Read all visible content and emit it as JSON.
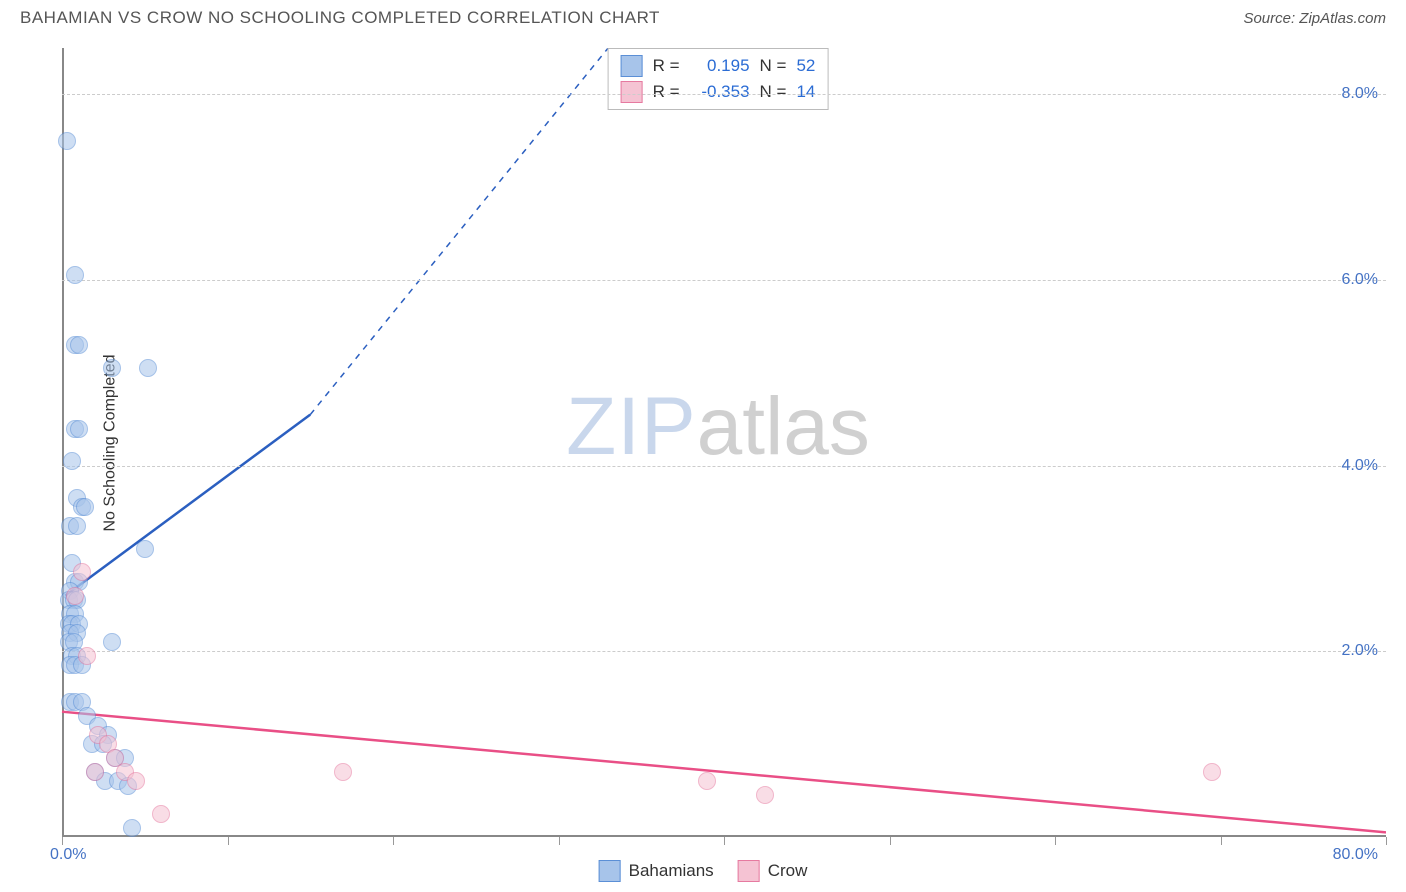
{
  "title": "BAHAMIAN VS CROW NO SCHOOLING COMPLETED CORRELATION CHART",
  "source_label": "Source: ZipAtlas.com",
  "chart": {
    "type": "scatter",
    "y_axis_label": "No Schooling Completed",
    "xlim": [
      0,
      80
    ],
    "ylim": [
      0,
      8.5
    ],
    "x_ticks": [
      0,
      10,
      20,
      30,
      40,
      50,
      60,
      70,
      80
    ],
    "x_tick_labels": {
      "0": "0.0%",
      "80": "80.0%"
    },
    "y_ticks": [
      2,
      4,
      6,
      8
    ],
    "y_tick_labels": [
      "2.0%",
      "4.0%",
      "6.0%",
      "8.0%"
    ],
    "background_color": "#ffffff",
    "grid_color": "#cccccc",
    "axis_color": "#888888",
    "marker_radius": 9,
    "marker_opacity": 0.55,
    "series": [
      {
        "name": "Bahamians",
        "fill_color": "#a7c4ea",
        "stroke_color": "#5b8fd6",
        "R": "0.195",
        "N": "52",
        "trend": {
          "x1": 0.2,
          "y1": 2.6,
          "x2": 15,
          "y2": 4.55,
          "dash_x2": 33,
          "dash_y2": 8.5,
          "color": "#2b5fc0",
          "width": 2.5
        },
        "points": [
          [
            0.3,
            7.5
          ],
          [
            0.8,
            6.05
          ],
          [
            0.8,
            5.3
          ],
          [
            1.0,
            5.3
          ],
          [
            3.0,
            5.05
          ],
          [
            5.2,
            5.05
          ],
          [
            0.8,
            4.4
          ],
          [
            1.0,
            4.4
          ],
          [
            0.6,
            4.05
          ],
          [
            0.9,
            3.65
          ],
          [
            1.2,
            3.55
          ],
          [
            1.4,
            3.55
          ],
          [
            0.5,
            3.35
          ],
          [
            0.9,
            3.35
          ],
          [
            5.0,
            3.1
          ],
          [
            0.6,
            2.95
          ],
          [
            0.8,
            2.75
          ],
          [
            1.0,
            2.75
          ],
          [
            0.5,
            2.65
          ],
          [
            0.4,
            2.55
          ],
          [
            0.7,
            2.55
          ],
          [
            0.9,
            2.55
          ],
          [
            0.5,
            2.4
          ],
          [
            0.8,
            2.4
          ],
          [
            0.4,
            2.3
          ],
          [
            0.6,
            2.3
          ],
          [
            1.0,
            2.3
          ],
          [
            0.5,
            2.2
          ],
          [
            0.9,
            2.2
          ],
          [
            0.4,
            2.1
          ],
          [
            0.7,
            2.1
          ],
          [
            3.0,
            2.1
          ],
          [
            0.6,
            1.95
          ],
          [
            0.9,
            1.95
          ],
          [
            0.5,
            1.85
          ],
          [
            0.8,
            1.85
          ],
          [
            1.2,
            1.85
          ],
          [
            0.5,
            1.45
          ],
          [
            0.8,
            1.45
          ],
          [
            1.2,
            1.45
          ],
          [
            1.5,
            1.3
          ],
          [
            2.2,
            1.2
          ],
          [
            2.8,
            1.1
          ],
          [
            1.8,
            1.0
          ],
          [
            2.5,
            1.0
          ],
          [
            3.2,
            0.85
          ],
          [
            3.8,
            0.85
          ],
          [
            2.0,
            0.7
          ],
          [
            2.6,
            0.6
          ],
          [
            3.4,
            0.6
          ],
          [
            4.0,
            0.55
          ],
          [
            4.2,
            0.1
          ]
        ]
      },
      {
        "name": "Crow",
        "fill_color": "#f5c3d3",
        "stroke_color": "#e67aa0",
        "R": "-0.353",
        "N": "14",
        "trend": {
          "x1": 0,
          "y1": 1.35,
          "x2": 80,
          "y2": 0.05,
          "color": "#e94f86",
          "width": 2.5
        },
        "points": [
          [
            1.2,
            2.85
          ],
          [
            0.8,
            2.6
          ],
          [
            1.5,
            1.95
          ],
          [
            2.2,
            1.1
          ],
          [
            2.8,
            1.0
          ],
          [
            3.2,
            0.85
          ],
          [
            3.8,
            0.7
          ],
          [
            2.0,
            0.7
          ],
          [
            4.5,
            0.6
          ],
          [
            6.0,
            0.25
          ],
          [
            17.0,
            0.7
          ],
          [
            39.0,
            0.6
          ],
          [
            42.5,
            0.45
          ],
          [
            69.5,
            0.7
          ]
        ]
      }
    ]
  },
  "legend": {
    "items": [
      "Bahamians",
      "Crow"
    ]
  },
  "stats_box": {
    "r_label": "R  =",
    "n_label": "N  ="
  },
  "watermark": {
    "part1": "ZIP",
    "part2": "atlas"
  }
}
